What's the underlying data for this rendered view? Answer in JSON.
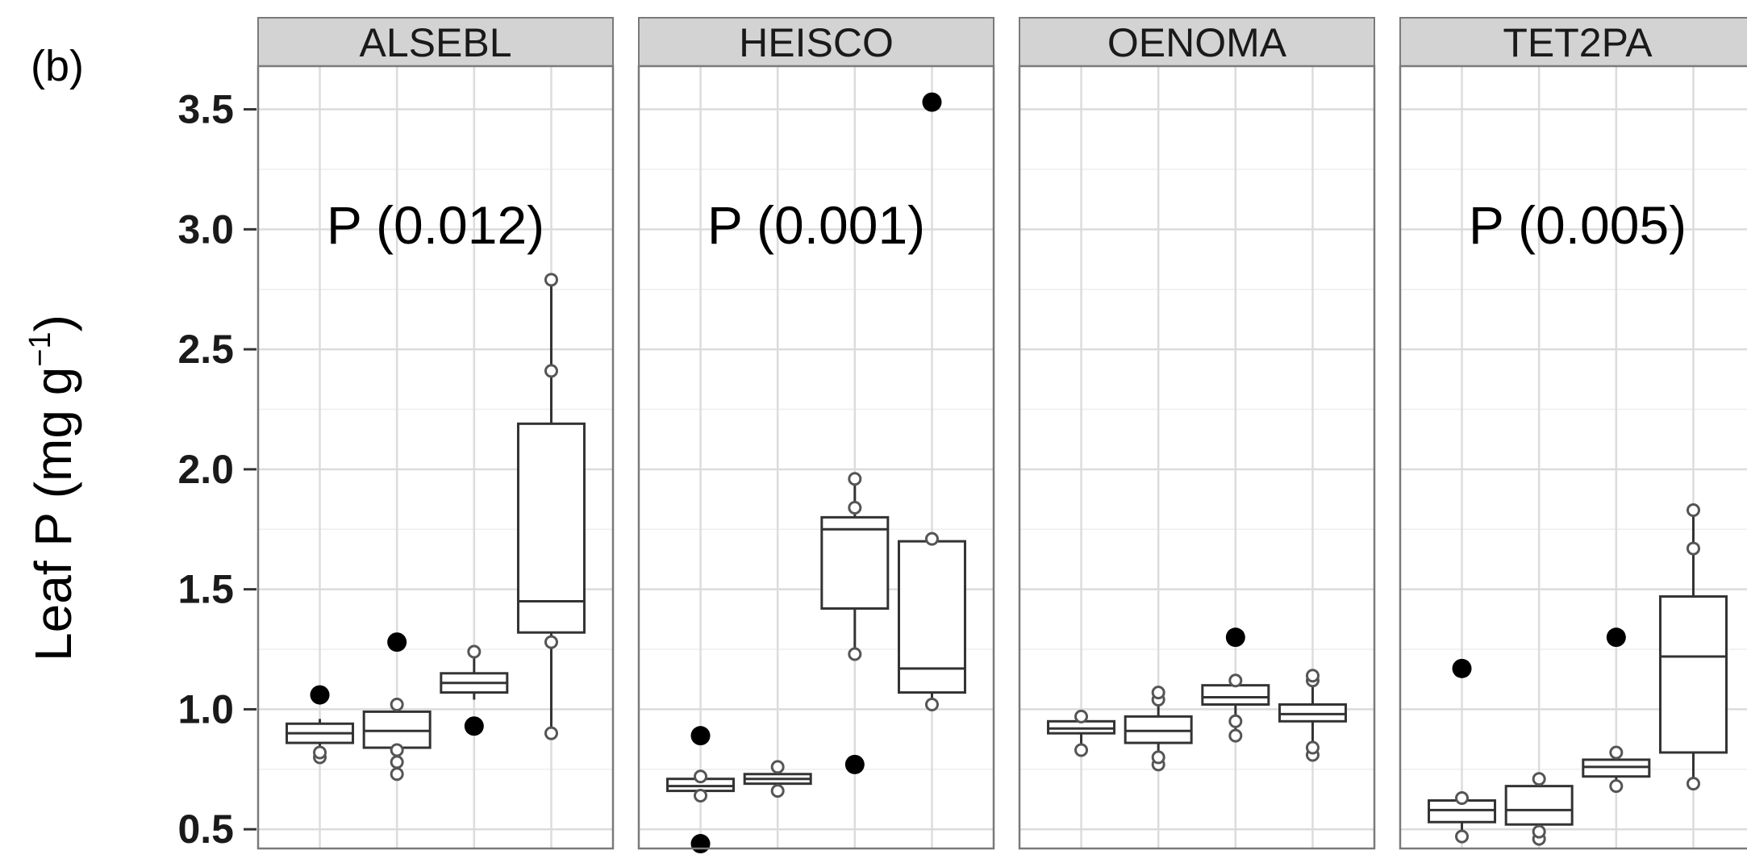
{
  "panel_tag": "(b)",
  "ylabel_main": "Leaf  P  (mg g",
  "ylabel_sup": "−1",
  "ylabel_close": ")",
  "chart_data": {
    "type": "boxplot",
    "ylabel": "Leaf P (mg g−1)",
    "ylim": [
      0.42,
      3.68
    ],
    "yticks": [
      0.5,
      1.0,
      1.5,
      2.0,
      2.5,
      3.0,
      3.5
    ],
    "ytick_labels": [
      "0.5",
      "1.0",
      "1.5",
      "2.0",
      "2.5",
      "3.0",
      "3.5"
    ],
    "groups_per_panel": 4,
    "panels": [
      {
        "name": "ALSEBL",
        "annotation": "P (0.012)",
        "boxes": [
          {
            "q1": 0.86,
            "median": 0.9,
            "q3": 0.94,
            "whisker_low": 0.8,
            "whisker_high": 0.96,
            "points": [
              0.8,
              0.82
            ],
            "outliers": [
              1.06
            ]
          },
          {
            "q1": 0.84,
            "median": 0.91,
            "q3": 0.99,
            "whisker_low": 0.73,
            "whisker_high": 1.03,
            "points": [
              0.73,
              0.78,
              0.83,
              1.02
            ],
            "outliers": [
              1.28
            ]
          },
          {
            "q1": 1.07,
            "median": 1.11,
            "q3": 1.15,
            "whisker_low": 1.04,
            "whisker_high": 1.25,
            "points": [
              1.24
            ],
            "outliers": [
              0.93
            ]
          },
          {
            "q1": 1.32,
            "median": 1.45,
            "q3": 2.19,
            "whisker_low": 0.9,
            "whisker_high": 2.79,
            "points": [
              0.9,
              1.28,
              2.41,
              2.79
            ],
            "outliers": []
          }
        ]
      },
      {
        "name": "HEISCO",
        "annotation": "P (0.001)",
        "boxes": [
          {
            "q1": 0.66,
            "median": 0.68,
            "q3": 0.71,
            "whisker_low": 0.64,
            "whisker_high": 0.72,
            "points": [
              0.64,
              0.72
            ],
            "outliers": [
              0.89,
              0.44
            ]
          },
          {
            "q1": 0.69,
            "median": 0.71,
            "q3": 0.73,
            "whisker_low": 0.66,
            "whisker_high": 0.76,
            "points": [
              0.66,
              0.76
            ],
            "outliers": []
          },
          {
            "q1": 1.42,
            "median": 1.75,
            "q3": 1.8,
            "whisker_low": 1.23,
            "whisker_high": 1.96,
            "points": [
              1.23,
              1.84,
              1.96
            ],
            "outliers": [
              0.77
            ]
          },
          {
            "q1": 1.07,
            "median": 1.17,
            "q3": 1.7,
            "whisker_low": 1.02,
            "whisker_high": 1.71,
            "points": [
              1.02,
              1.71
            ],
            "outliers": [
              3.53
            ]
          }
        ]
      },
      {
        "name": "OENOMA",
        "annotation": "",
        "boxes": [
          {
            "q1": 0.9,
            "median": 0.92,
            "q3": 0.95,
            "whisker_low": 0.83,
            "whisker_high": 0.98,
            "points": [
              0.83,
              0.97
            ],
            "outliers": []
          },
          {
            "q1": 0.86,
            "median": 0.91,
            "q3": 0.97,
            "whisker_low": 0.77,
            "whisker_high": 1.07,
            "points": [
              0.77,
              0.8,
              1.04,
              1.07
            ],
            "outliers": []
          },
          {
            "q1": 1.02,
            "median": 1.05,
            "q3": 1.1,
            "whisker_low": 0.89,
            "whisker_high": 1.14,
            "points": [
              0.89,
              0.95,
              1.12
            ],
            "outliers": [
              1.3
            ]
          },
          {
            "q1": 0.95,
            "median": 0.98,
            "q3": 1.02,
            "whisker_low": 0.8,
            "whisker_high": 1.15,
            "points": [
              0.81,
              0.84,
              1.12,
              1.14
            ],
            "outliers": []
          }
        ]
      },
      {
        "name": "TET2PA",
        "annotation": "P (0.005)",
        "boxes": [
          {
            "q1": 0.53,
            "median": 0.58,
            "q3": 0.62,
            "whisker_low": 0.47,
            "whisker_high": 0.64,
            "points": [
              0.47,
              0.63
            ],
            "outliers": [
              1.17
            ]
          },
          {
            "q1": 0.52,
            "median": 0.58,
            "q3": 0.68,
            "whisker_low": 0.46,
            "whisker_high": 0.71,
            "points": [
              0.46,
              0.49,
              0.71
            ],
            "outliers": []
          },
          {
            "q1": 0.72,
            "median": 0.76,
            "q3": 0.79,
            "whisker_low": 0.68,
            "whisker_high": 0.82,
            "points": [
              0.68,
              0.82
            ],
            "outliers": [
              1.3
            ]
          },
          {
            "q1": 0.82,
            "median": 1.22,
            "q3": 1.47,
            "whisker_low": 0.69,
            "whisker_high": 1.83,
            "points": [
              0.69,
              1.67,
              1.83
            ],
            "outliers": []
          }
        ]
      }
    ]
  }
}
